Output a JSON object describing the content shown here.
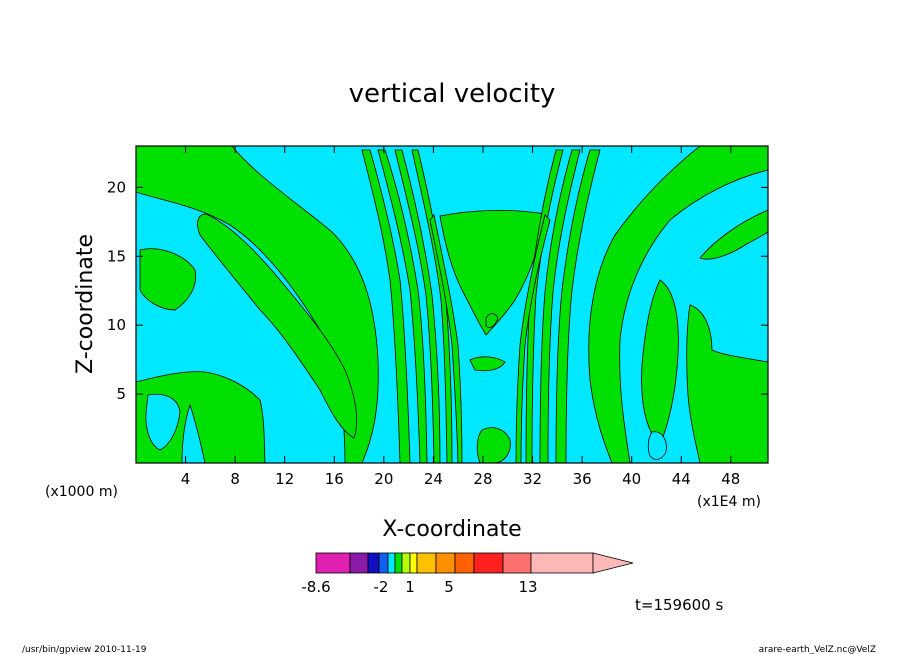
{
  "chart_data": {
    "type": "heatmap",
    "title": "vertical velocity",
    "xlabel": "X-coordinate",
    "ylabel": "Z-coordinate",
    "x_unit_left": "(x1000 m)",
    "x_unit_right": "(x1E4 m)",
    "x_ticks": [
      "4",
      "8",
      "12",
      "16",
      "20",
      "24",
      "28",
      "32",
      "36",
      "40",
      "44",
      "48"
    ],
    "x_tick_values": [
      4,
      8,
      12,
      16,
      20,
      24,
      28,
      32,
      36,
      40,
      44,
      48
    ],
    "y_ticks": [
      "5",
      "10",
      "15",
      "20"
    ],
    "y_tick_values": [
      5,
      10,
      15,
      20
    ],
    "xlim": [
      0,
      51
    ],
    "ylim": [
      0,
      23
    ],
    "time_label": "t=159600 s",
    "colorbar": {
      "segments": [
        {
          "color": "#e020b0"
        },
        {
          "color": "#8a1aa8"
        },
        {
          "color": "#1010c0"
        },
        {
          "color": "#1060f0"
        },
        {
          "color": "#00e8ff"
        },
        {
          "color": "#00e000"
        },
        {
          "color": "#b8ff00"
        },
        {
          "color": "#ffff00"
        },
        {
          "color": "#ffc000"
        },
        {
          "color": "#ff9000"
        },
        {
          "color": "#ff6000"
        },
        {
          "color": "#ff2020"
        },
        {
          "color": "#ff7070"
        },
        {
          "color": "#ffb8b8"
        }
      ],
      "tick_labels": [
        "-8.6",
        "-2",
        "1",
        "5",
        "13"
      ]
    },
    "region_colors": {
      "negative": "#00e8ff",
      "positive": "#00e000"
    }
  },
  "footer": {
    "left": "/usr/bin/gpview   2010-11-19",
    "right": "arare-earth_VelZ.nc@VelZ"
  }
}
